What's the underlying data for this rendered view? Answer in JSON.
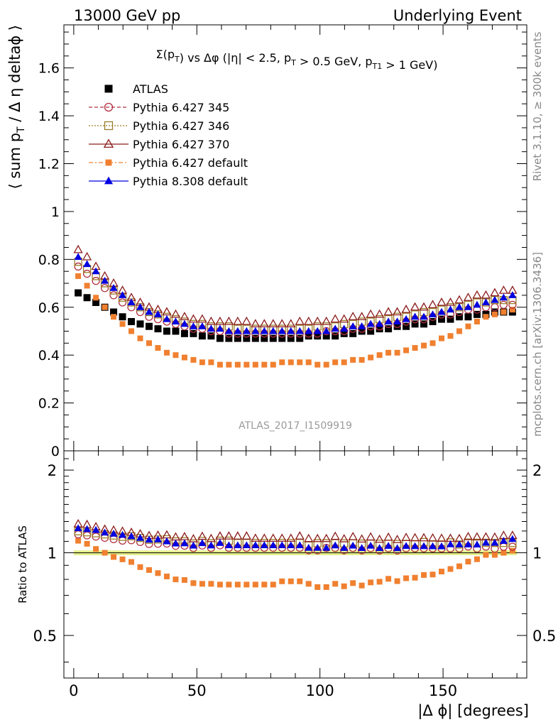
{
  "header": {
    "left": "13000 GeV pp",
    "right": "Underlying Event"
  },
  "side_labels": {
    "rivet": "Rivet 3.1.10, ≥ 300k events",
    "mcplots": "mcplots.cern.ch [arXiv:1306.3436]"
  },
  "watermark": "ATLAS_2017_I1509919",
  "chart_data": [
    {
      "type": "scatter",
      "panel": "main",
      "title": "Σ(p_T) vs Δφ (|η| < 2.5, p_T > 0.5 GeV, p_T1 > 1 GeV)",
      "ylabel": "⟨ sum p_T / Δ η deltaϕ ⟩",
      "xlabel": "",
      "xlim": [
        -4,
        184
      ],
      "ylim": [
        0,
        1.78
      ],
      "yticks": [
        0,
        0.2,
        0.4,
        0.6,
        0.8,
        1,
        1.2,
        1.4,
        1.6
      ],
      "ytick_labels": [
        "0",
        "0.2",
        "0.4",
        "0.6",
        "0.8",
        "1",
        "1.2",
        "1.4",
        "1.6"
      ],
      "legend_position": "top-left",
      "x_phi_min": 1.8,
      "x_phi_step": 3.6,
      "series": [
        {
          "name": "ATLAS",
          "color": "#000000",
          "marker": "square-filled",
          "values": [
            0.66,
            0.64,
            0.62,
            0.6,
            0.58,
            0.56,
            0.54,
            0.53,
            0.52,
            0.51,
            0.5,
            0.5,
            0.49,
            0.49,
            0.48,
            0.48,
            0.47,
            0.47,
            0.47,
            0.47,
            0.47,
            0.47,
            0.47,
            0.47,
            0.47,
            0.47,
            0.48,
            0.48,
            0.48,
            0.48,
            0.49,
            0.49,
            0.5,
            0.5,
            0.51,
            0.51,
            0.52,
            0.52,
            0.53,
            0.53,
            0.54,
            0.55,
            0.55,
            0.56,
            0.56,
            0.57,
            0.57,
            0.58,
            0.58,
            0.58
          ]
        },
        {
          "name": "Pythia 6.427 345",
          "color": "#b03040",
          "marker": "circle-open",
          "values": [
            0.77,
            0.74,
            0.71,
            0.68,
            0.65,
            0.62,
            0.6,
            0.58,
            0.56,
            0.55,
            0.54,
            0.53,
            0.52,
            0.51,
            0.51,
            0.5,
            0.5,
            0.49,
            0.49,
            0.49,
            0.49,
            0.49,
            0.49,
            0.49,
            0.49,
            0.49,
            0.49,
            0.49,
            0.5,
            0.5,
            0.5,
            0.51,
            0.51,
            0.52,
            0.52,
            0.53,
            0.53,
            0.54,
            0.55,
            0.55,
            0.56,
            0.57,
            0.57,
            0.58,
            0.59,
            0.59,
            0.6,
            0.6,
            0.61,
            0.61
          ]
        },
        {
          "name": "Pythia 6.427 346",
          "color": "#9a7d2a",
          "marker": "square-open",
          "values": [
            0.79,
            0.76,
            0.73,
            0.7,
            0.67,
            0.64,
            0.62,
            0.6,
            0.58,
            0.57,
            0.56,
            0.55,
            0.54,
            0.53,
            0.53,
            0.52,
            0.52,
            0.52,
            0.51,
            0.51,
            0.51,
            0.51,
            0.51,
            0.51,
            0.51,
            0.51,
            0.51,
            0.52,
            0.52,
            0.52,
            0.53,
            0.53,
            0.54,
            0.54,
            0.55,
            0.55,
            0.56,
            0.56,
            0.57,
            0.58,
            0.58,
            0.59,
            0.6,
            0.6,
            0.61,
            0.62,
            0.62,
            0.63,
            0.63,
            0.63
          ]
        },
        {
          "name": "Pythia 6.427 370",
          "color": "#8b1c1c",
          "marker": "triangle-open",
          "values": [
            0.84,
            0.81,
            0.77,
            0.73,
            0.7,
            0.67,
            0.64,
            0.62,
            0.6,
            0.59,
            0.58,
            0.57,
            0.56,
            0.55,
            0.55,
            0.54,
            0.54,
            0.54,
            0.54,
            0.54,
            0.53,
            0.53,
            0.53,
            0.53,
            0.53,
            0.54,
            0.54,
            0.54,
            0.54,
            0.55,
            0.55,
            0.56,
            0.56,
            0.57,
            0.57,
            0.58,
            0.58,
            0.59,
            0.6,
            0.6,
            0.61,
            0.62,
            0.62,
            0.63,
            0.64,
            0.65,
            0.65,
            0.66,
            0.67,
            0.67
          ]
        },
        {
          "name": "Pythia 6.427 default",
          "color": "#f08030",
          "marker": "square-filled-small",
          "values": [
            0.73,
            0.69,
            0.64,
            0.6,
            0.56,
            0.53,
            0.5,
            0.47,
            0.45,
            0.43,
            0.41,
            0.4,
            0.39,
            0.38,
            0.37,
            0.37,
            0.36,
            0.36,
            0.36,
            0.36,
            0.36,
            0.36,
            0.36,
            0.37,
            0.37,
            0.37,
            0.37,
            0.36,
            0.36,
            0.37,
            0.37,
            0.38,
            0.38,
            0.39,
            0.4,
            0.41,
            0.41,
            0.42,
            0.43,
            0.44,
            0.45,
            0.47,
            0.48,
            0.5,
            0.52,
            0.54,
            0.56,
            0.57,
            0.58,
            0.59
          ]
        },
        {
          "name": "Pythia 8.308 default",
          "color": "#0000e0",
          "marker": "triangle-filled",
          "values": [
            0.81,
            0.78,
            0.75,
            0.71,
            0.68,
            0.65,
            0.62,
            0.6,
            0.58,
            0.57,
            0.55,
            0.54,
            0.53,
            0.52,
            0.52,
            0.51,
            0.51,
            0.5,
            0.5,
            0.5,
            0.5,
            0.5,
            0.5,
            0.5,
            0.5,
            0.5,
            0.5,
            0.5,
            0.5,
            0.51,
            0.51,
            0.52,
            0.52,
            0.53,
            0.53,
            0.54,
            0.54,
            0.55,
            0.56,
            0.56,
            0.57,
            0.58,
            0.59,
            0.6,
            0.6,
            0.61,
            0.62,
            0.63,
            0.64,
            0.65
          ]
        }
      ]
    },
    {
      "type": "scatter",
      "panel": "ratio",
      "ylabel": "Ratio to ATLAS",
      "xlabel": "|Δ ϕ| [degrees]",
      "xlim": [
        -4,
        184
      ],
      "ylim": [
        0.35,
        2.35
      ],
      "yscale": "log",
      "xticks": [
        0,
        50,
        100,
        150
      ],
      "xtick_labels": [
        "0",
        "50",
        "100",
        "150"
      ],
      "yticks": [
        0.5,
        1,
        2
      ],
      "ytick_labels": [
        "0.5",
        "1",
        "2"
      ],
      "reference_line": 1,
      "band_color": "#e6f08c",
      "band": [
        0.98,
        1.02
      ],
      "note": "series are the main-panel series divided by ATLAS"
    }
  ]
}
